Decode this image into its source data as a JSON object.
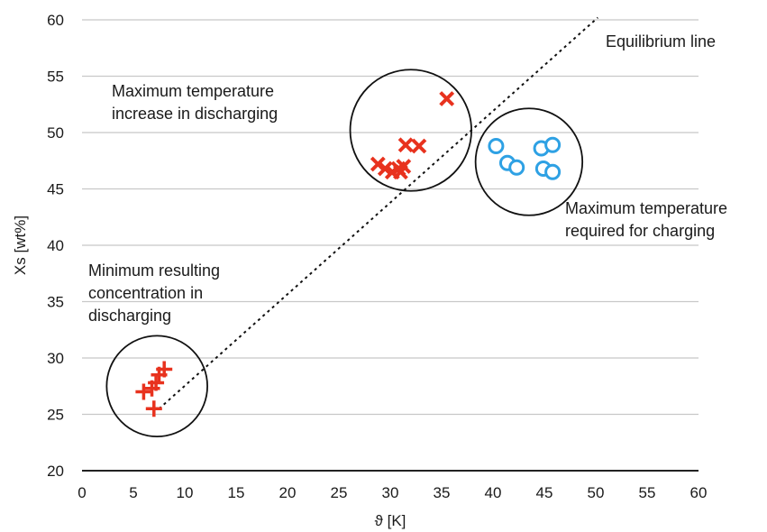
{
  "chart_data": {
    "type": "scatter",
    "title": "",
    "xlabel": "ϑ [K]",
    "ylabel": "Xs [wt%]",
    "xlim": [
      0,
      60
    ],
    "ylim": [
      20,
      60
    ],
    "xticks": [
      0,
      5,
      10,
      15,
      20,
      25,
      30,
      35,
      40,
      45,
      50,
      55,
      60
    ],
    "yticks": [
      20,
      25,
      30,
      35,
      40,
      45,
      50,
      55,
      60
    ],
    "grid": "horizontal",
    "series": [
      {
        "marker": "plus",
        "color": "#e8321e",
        "points": [
          [
            6.0,
            27.0
          ],
          [
            6.8,
            27.3
          ],
          [
            7.0,
            25.5
          ],
          [
            7.2,
            27.8
          ],
          [
            7.5,
            28.5
          ],
          [
            8.0,
            29.0
          ]
        ]
      },
      {
        "marker": "x",
        "color": "#e8321e",
        "points": [
          [
            28.8,
            47.2
          ],
          [
            29.5,
            46.8
          ],
          [
            30.2,
            46.5
          ],
          [
            30.8,
            46.8
          ],
          [
            31.0,
            46.5
          ],
          [
            31.3,
            47.0
          ],
          [
            31.5,
            48.9
          ],
          [
            32.8,
            48.8
          ],
          [
            35.5,
            53.0
          ]
        ]
      },
      {
        "marker": "circle",
        "color": "#2ea1e4",
        "points": [
          [
            40.3,
            48.8
          ],
          [
            41.4,
            47.3
          ],
          [
            42.3,
            46.9
          ],
          [
            44.7,
            48.6
          ],
          [
            45.8,
            48.9
          ],
          [
            44.9,
            46.8
          ],
          [
            45.8,
            46.5
          ]
        ]
      }
    ],
    "equilibrium_line": {
      "label": "Equilibrium line",
      "from": [
        7.5,
        25.5
      ],
      "to": [
        50.2,
        60.2
      ]
    },
    "circles": [
      {
        "center": [
          7.3,
          27.5
        ],
        "r_x": 4.9
      },
      {
        "center": [
          32.0,
          50.2
        ],
        "r_x": 5.9
      },
      {
        "center": [
          43.5,
          47.4
        ],
        "r_x": 5.2
      }
    ],
    "annotations": [
      {
        "lines": [
          "Maximum temperature",
          "increase in discharging"
        ]
      },
      {
        "lines": [
          "Maximum temperature",
          "required for charging"
        ]
      },
      {
        "lines": [
          "Minimum resulting",
          "concentration in",
          "discharging"
        ]
      }
    ]
  }
}
